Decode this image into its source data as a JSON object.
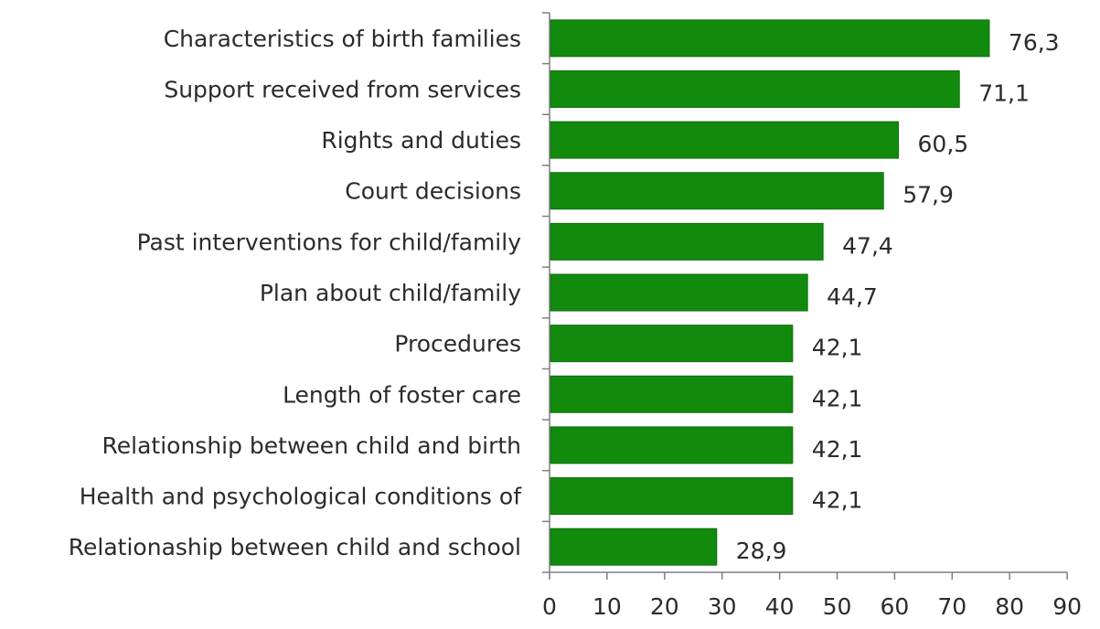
{
  "chart_data": {
    "type": "bar",
    "orientation": "horizontal",
    "categories": [
      "Characteristics of birth families",
      "Support received from services",
      "Rights and duties",
      "Court decisions",
      "Past interventions for child/family",
      "Plan about child/family",
      "Procedures",
      "Length of foster care",
      "Relationship between child and birth",
      "Health and psychological conditions of",
      "Relationaship between child and school"
    ],
    "values": [
      76.3,
      71.1,
      60.5,
      57.9,
      47.4,
      44.7,
      42.1,
      42.1,
      42.1,
      42.1,
      28.9
    ],
    "value_labels": [
      "76,3",
      "71,1",
      "60,5",
      "57,9",
      "47,4",
      "44,7",
      "42,1",
      "42,1",
      "42,1",
      "42,1",
      "28,9"
    ],
    "xticks": [
      "0",
      "10",
      "20",
      "30",
      "40",
      "50",
      "60",
      "70",
      "80",
      "90"
    ],
    "xlim": [
      0,
      90
    ],
    "title": "",
    "xlabel": "",
    "ylabel": "",
    "grid": false,
    "legend": "none",
    "bar_color": "#118a0e",
    "bar_edge_color": "#0b6f09"
  }
}
